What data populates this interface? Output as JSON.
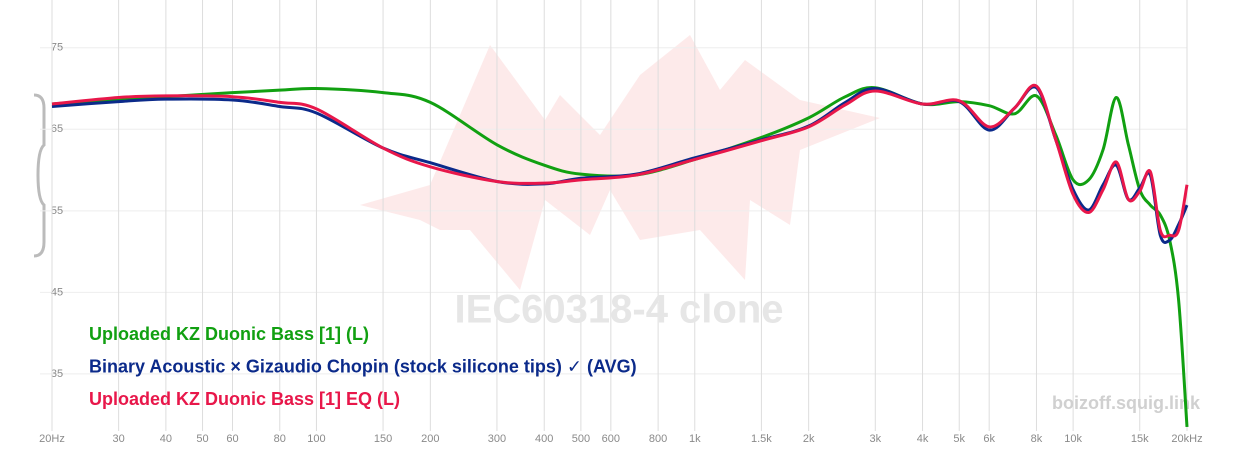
{
  "chart_data": {
    "type": "line",
    "log_x": true,
    "grid": true,
    "watermark": "IEC60318-4 clone",
    "site_label": "boizoff.squig.link",
    "xlim": [
      20,
      20000
    ],
    "ylim": [
      28,
      80
    ],
    "yticks": [
      35,
      45,
      55,
      65,
      75
    ],
    "xticks": [
      {
        "value": 20,
        "label": "20Hz"
      },
      30,
      40,
      50,
      60,
      80,
      100,
      150,
      200,
      300,
      400,
      500,
      600,
      800,
      {
        "value": 1000,
        "label": "1k"
      },
      {
        "value": 1500,
        "label": "1.5k"
      },
      {
        "value": 2000,
        "label": "2k"
      },
      {
        "value": 3000,
        "label": "3k"
      },
      {
        "value": 4000,
        "label": "4k"
      },
      {
        "value": 5000,
        "label": "5k"
      },
      {
        "value": 6000,
        "label": "6k"
      },
      {
        "value": 8000,
        "label": "8k"
      },
      {
        "value": 10000,
        "label": "10k"
      },
      {
        "value": 15000,
        "label": "15k"
      },
      {
        "value": 20000,
        "label": "20kHz"
      }
    ],
    "x": [
      20,
      30,
      40,
      60,
      80,
      100,
      150,
      200,
      300,
      400,
      500,
      700,
      1000,
      1500,
      2000,
      2500,
      3000,
      4000,
      5000,
      6000,
      7000,
      8000,
      9000,
      10000,
      11000,
      12000,
      13000,
      14000,
      15000,
      16000,
      17000,
      18000,
      19000,
      20000
    ],
    "series": [
      {
        "name": "Uploaded KZ Duonic Bass [1] (L)",
        "color": "#11a011",
        "values": [
          68.1,
          68.7,
          69.0,
          69.5,
          69.8,
          70.0,
          69.5,
          68.3,
          63.1,
          60.6,
          59.5,
          59.4,
          61.3,
          64.0,
          66.4,
          69.0,
          70.1,
          68.1,
          68.4,
          67.9,
          66.9,
          69.1,
          64.3,
          58.8,
          58.8,
          62.5,
          68.9,
          63.1,
          57.6,
          55.7,
          54.5,
          51.4,
          44.1,
          28.5
        ]
      },
      {
        "name": "Binary Acoustic × Gizaudio Chopin (stock silicone tips) ✓ (AVG)",
        "color": "#0b2a8a",
        "values": [
          67.8,
          68.4,
          68.7,
          68.6,
          67.8,
          67.0,
          62.7,
          60.9,
          58.6,
          58.3,
          59.0,
          59.5,
          61.5,
          63.7,
          65.4,
          68.3,
          70.0,
          68.1,
          68.4,
          64.9,
          67.6,
          70.1,
          63.7,
          57.6,
          55.1,
          58.2,
          60.6,
          56.4,
          57.8,
          59.4,
          52.0,
          51.4,
          53.3,
          55.7
        ]
      },
      {
        "name": "Uploaded KZ Duonic Bass [1] EQ (L)",
        "color": "#e8174a",
        "values": [
          68.1,
          68.9,
          69.1,
          69.0,
          68.3,
          67.5,
          62.7,
          60.4,
          58.6,
          58.4,
          58.8,
          59.4,
          61.3,
          63.6,
          65.3,
          68.0,
          69.7,
          68.1,
          68.5,
          65.3,
          67.6,
          70.3,
          63.7,
          57.0,
          54.8,
          57.6,
          61.0,
          56.4,
          57.4,
          59.8,
          52.6,
          52.0,
          52.6,
          58.2
        ]
      }
    ]
  }
}
